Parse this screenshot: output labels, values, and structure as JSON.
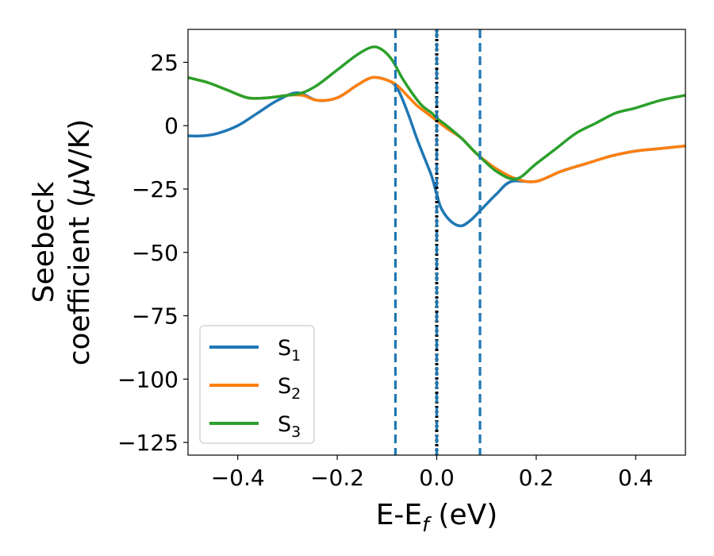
{
  "chart_data": {
    "type": "line",
    "xlabel": "E-E",
    "xlabel_sub": "f",
    "xlabel_unit": " (eV)",
    "ylabel_line1": "Seebeck",
    "ylabel_line2_pre": "coefficient  (",
    "ylabel_mu": "μ",
    "ylabel_line2_post": "V/K)",
    "xlim": [
      -0.5,
      0.5
    ],
    "ylim": [
      -130,
      38
    ],
    "xticks": [
      -0.4,
      -0.2,
      0.0,
      0.2,
      0.4
    ],
    "xtick_labels": [
      "−0.4",
      "−0.2",
      "0.0",
      "0.2",
      "0.4"
    ],
    "yticks": [
      25,
      0,
      -25,
      -50,
      -75,
      -100,
      -125
    ],
    "ytick_labels": [
      "25",
      "0",
      "−25",
      "−50",
      "−75",
      "−100",
      "−125"
    ],
    "legend_position": "lower-left",
    "grid": false,
    "vlines": [
      {
        "x": -0.083,
        "color": "#1f77b4",
        "style": "dashed"
      },
      {
        "x": 0.0,
        "color": "#000000",
        "style": "dotted"
      },
      {
        "x": 0.0,
        "color": "#1f77b4",
        "style": "dashed"
      },
      {
        "x": 0.087,
        "color": "#1f77b4",
        "style": "dashed"
      }
    ],
    "series": [
      {
        "name": "S",
        "sub": "1",
        "color": "#1f77b4",
        "x": [
          -0.5,
          -0.47,
          -0.44,
          -0.4,
          -0.36,
          -0.32,
          -0.28,
          -0.24,
          -0.2,
          -0.16,
          -0.13,
          -0.1,
          -0.08,
          -0.06,
          -0.04,
          -0.02,
          -0.01,
          0.0,
          0.01,
          0.03,
          0.05,
          0.07,
          0.09,
          0.12,
          0.15,
          0.2,
          0.25,
          0.3,
          0.35,
          0.4,
          0.45,
          0.5
        ],
        "y": [
          -4,
          -4,
          -3,
          0,
          5,
          10,
          13,
          10,
          11,
          16,
          19,
          18,
          15,
          6,
          -5,
          -15,
          -20,
          -27,
          -33,
          -38,
          -39.5,
          -37,
          -33,
          -27,
          -22,
          -22,
          -18,
          -15,
          -12,
          -10,
          -9,
          -8
        ]
      },
      {
        "name": "S",
        "sub": "2",
        "color": "#ff7f0e",
        "x": [
          -0.5,
          -0.46,
          -0.42,
          -0.38,
          -0.34,
          -0.3,
          -0.27,
          -0.24,
          -0.2,
          -0.16,
          -0.13,
          -0.1,
          -0.08,
          -0.06,
          -0.04,
          -0.02,
          0.0,
          0.02,
          0.05,
          0.08,
          0.12,
          0.16,
          0.2,
          0.25,
          0.3,
          0.35,
          0.4,
          0.45,
          0.5
        ],
        "y": [
          19,
          17,
          14,
          11,
          11,
          12,
          12,
          10,
          11,
          16,
          19,
          18,
          16,
          12,
          8,
          5,
          2,
          -1,
          -5,
          -11,
          -17,
          -21,
          -22,
          -18,
          -15,
          -12,
          -10,
          -9,
          -8
        ]
      },
      {
        "name": "S",
        "sub": "3",
        "color": "#2ca02c",
        "x": [
          -0.5,
          -0.46,
          -0.42,
          -0.38,
          -0.34,
          -0.3,
          -0.27,
          -0.24,
          -0.2,
          -0.16,
          -0.13,
          -0.11,
          -0.09,
          -0.07,
          -0.05,
          -0.03,
          -0.01,
          0.0,
          0.02,
          0.05,
          0.08,
          0.12,
          0.16,
          0.2,
          0.24,
          0.28,
          0.32,
          0.36,
          0.4,
          0.45,
          0.5
        ],
        "y": [
          19,
          17,
          14,
          11,
          11,
          12,
          13,
          16,
          22,
          28,
          31,
          30,
          26,
          19,
          13,
          8,
          5,
          3,
          0,
          -5,
          -11,
          -18,
          -21,
          -15,
          -9,
          -3,
          1,
          5,
          7,
          10,
          12
        ]
      }
    ]
  }
}
